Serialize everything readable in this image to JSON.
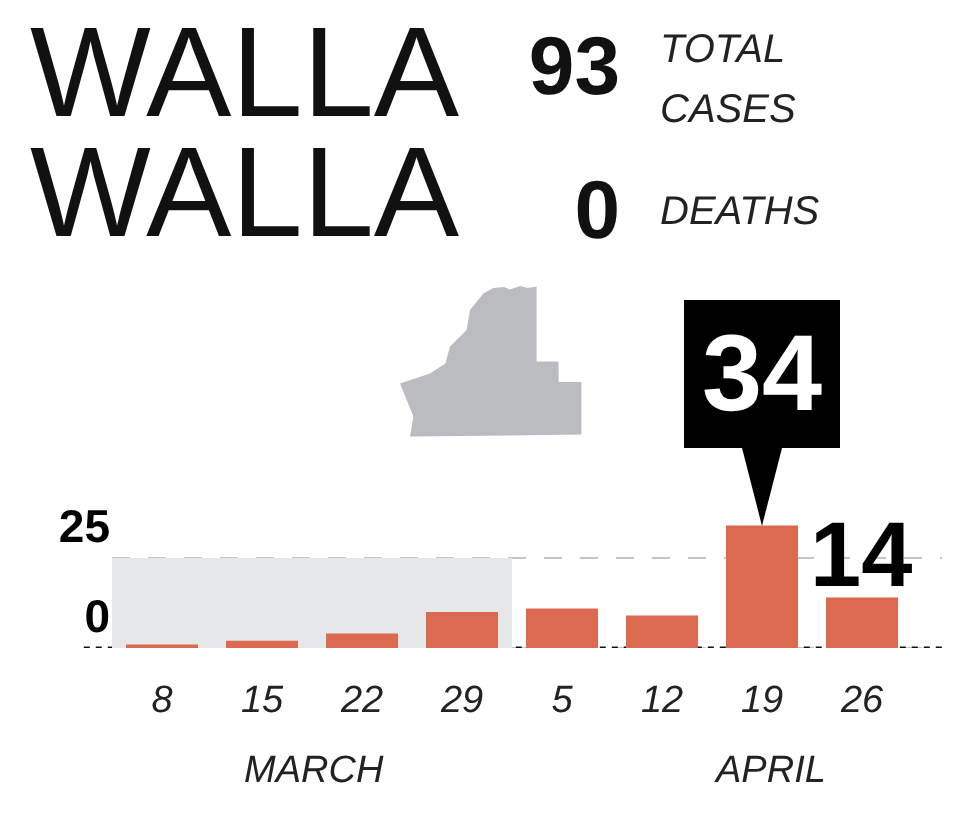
{
  "chart_data": {
    "type": "bar",
    "title": "WALLA WALLA",
    "annotations": [
      "93",
      "TOTAL CASES",
      "0",
      "DEATHS",
      "MARCH",
      "APRIL"
    ],
    "categories": [
      "8",
      "15",
      "22",
      "29",
      "5",
      "12",
      "19",
      "26"
    ],
    "values": [
      1,
      2,
      4,
      10,
      11,
      9,
      34,
      14
    ],
    "color": "#dc6a50",
    "value_labels": [
      null,
      null,
      null,
      null,
      null,
      null,
      "34",
      "14"
    ],
    "ylim": [
      0,
      35
    ],
    "yticks": [
      0,
      25
    ],
    "grid": "y",
    "bands": [
      {
        "axis": "x",
        "from": "8",
        "to": "29",
        "color": "#e6e7e8"
      }
    ]
  }
}
